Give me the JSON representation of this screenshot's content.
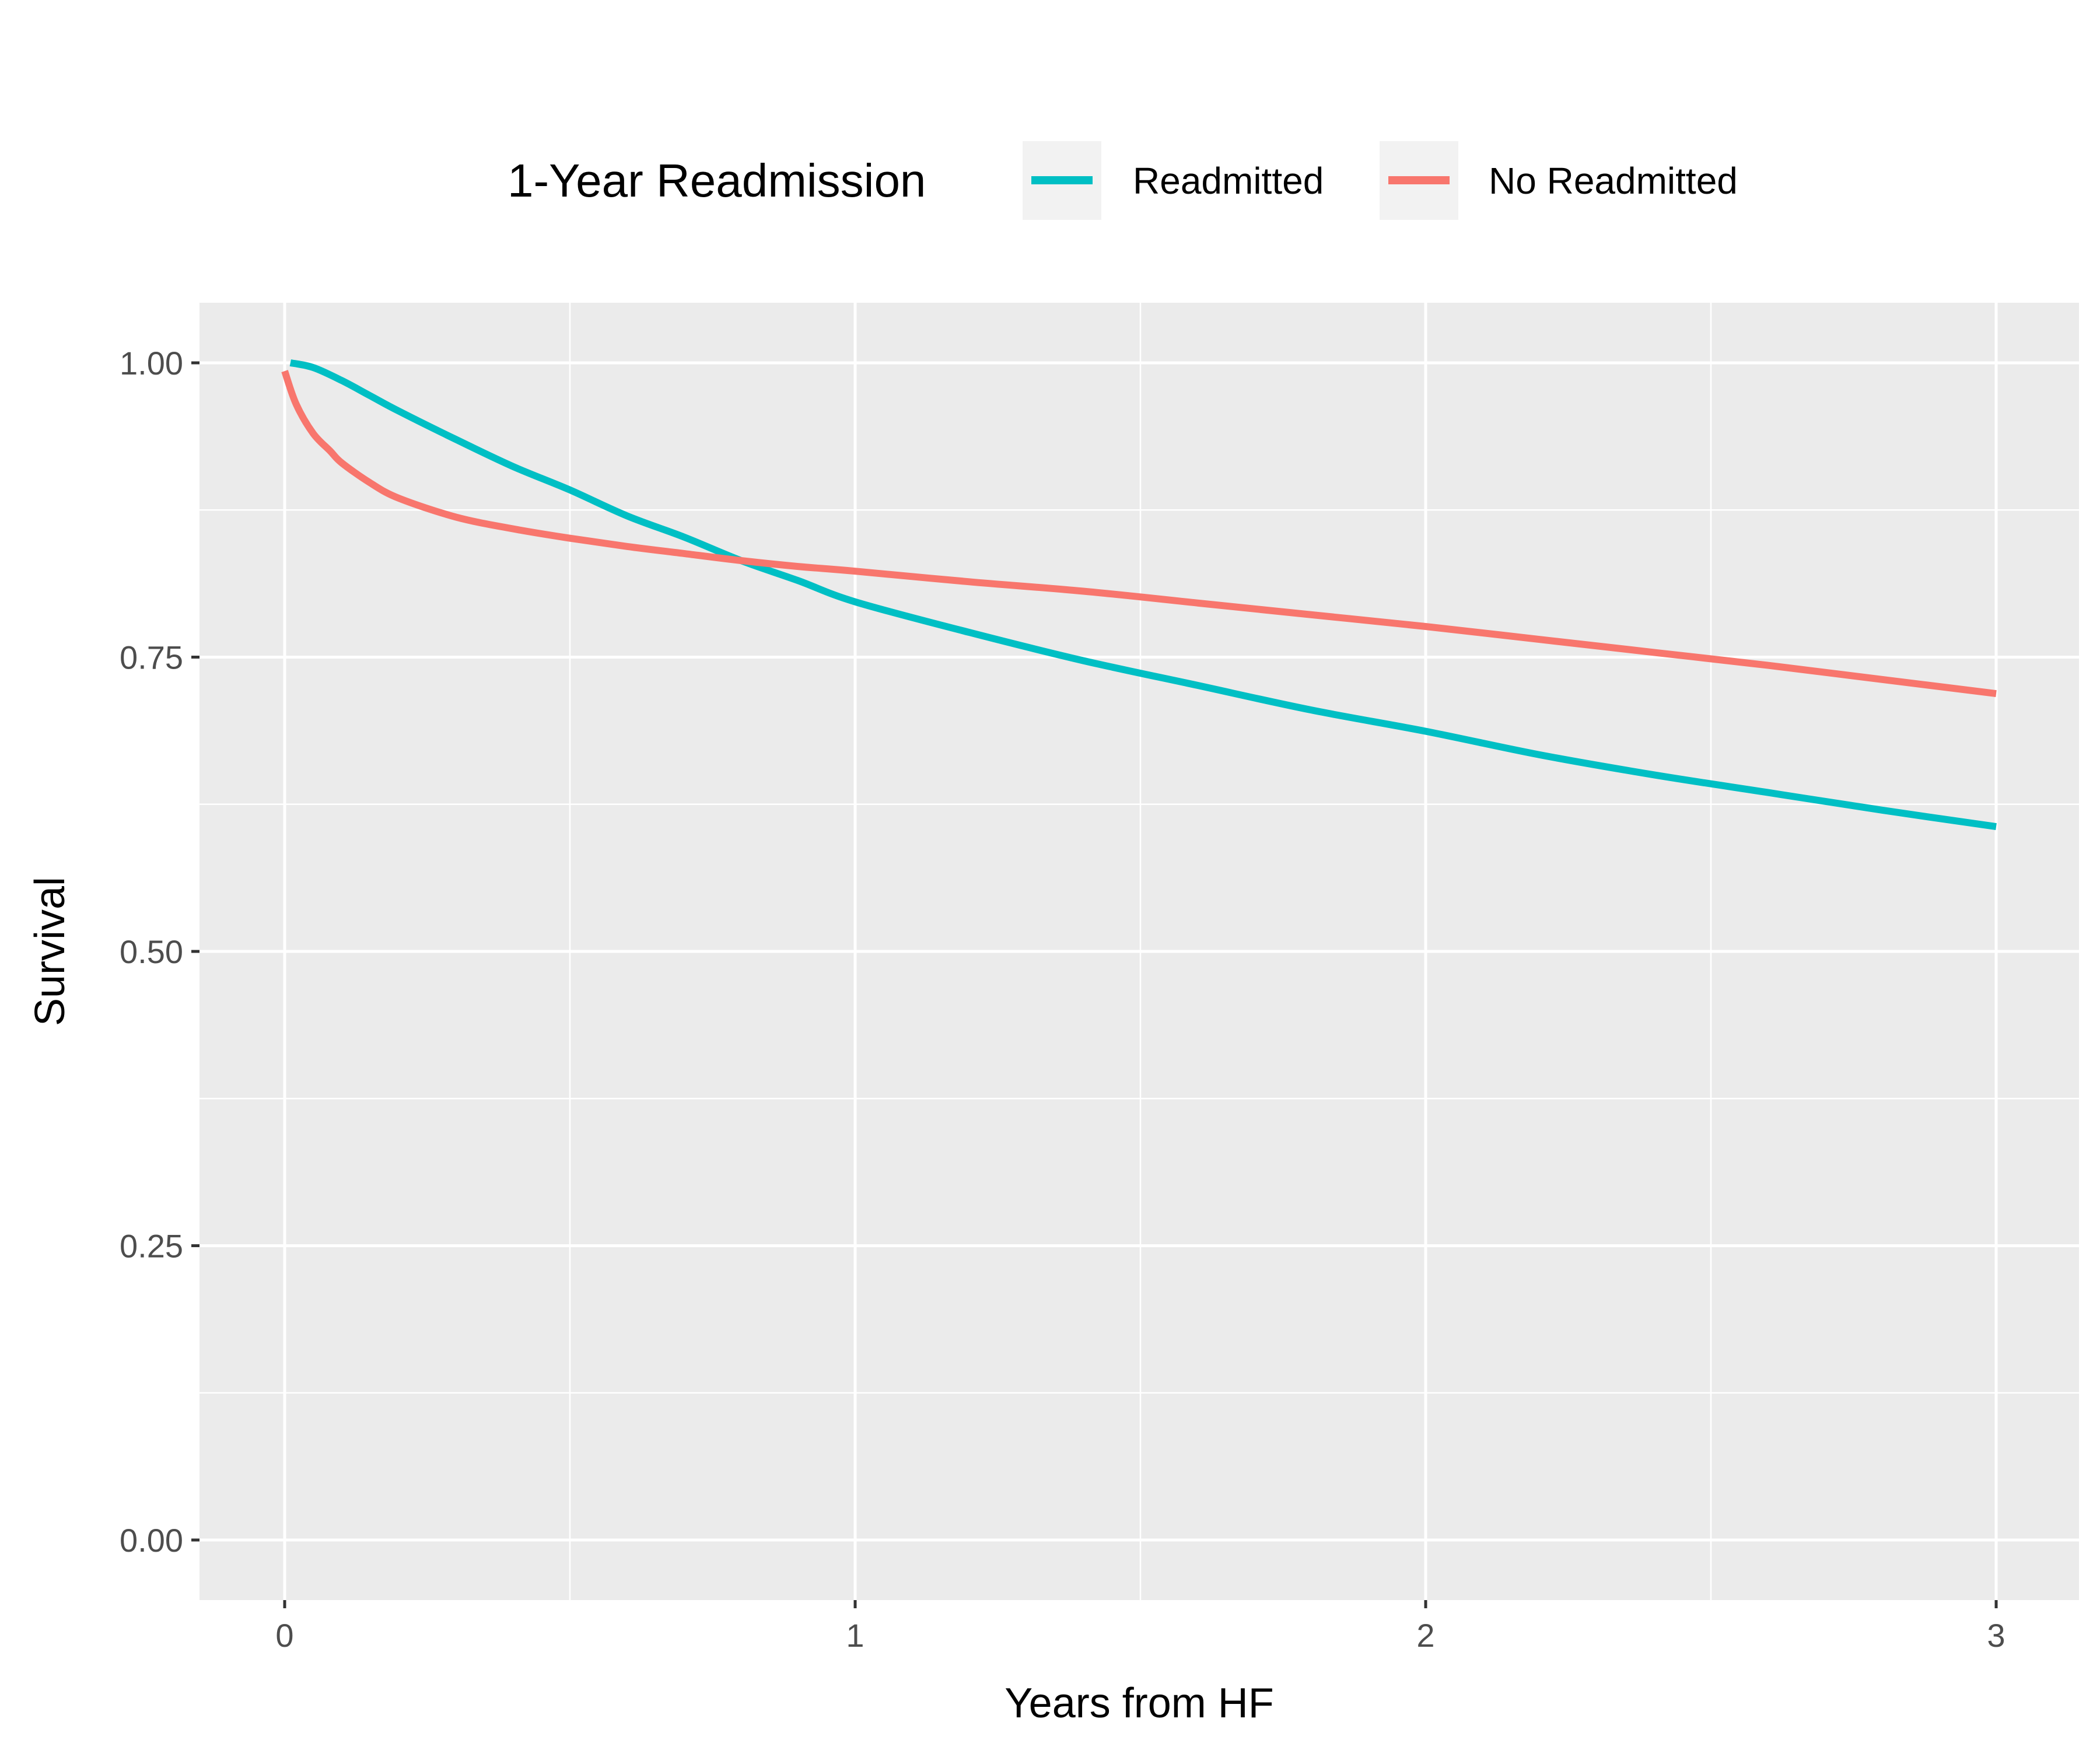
{
  "chart_data": {
    "type": "line",
    "title": "",
    "xlabel": "Years from HF",
    "ylabel": "Survival",
    "xlim": [
      0,
      3
    ],
    "ylim": [
      0,
      1
    ],
    "xticks": [
      "0",
      "1",
      "2",
      "3"
    ],
    "yticks": [
      "0.00",
      "0.25",
      "0.50",
      "0.75",
      "1.00"
    ],
    "grid": true,
    "legend": {
      "title": "1-Year Readmission",
      "position": "top"
    },
    "series": [
      {
        "name": "Readmitted",
        "color": "#00BFC4",
        "x": [
          0.01,
          0.05,
          0.1,
          0.15,
          0.2,
          0.3,
          0.4,
          0.5,
          0.6,
          0.7,
          0.8,
          0.9,
          1.0,
          1.2,
          1.4,
          1.6,
          1.8,
          2.0,
          2.2,
          2.4,
          2.6,
          2.8,
          3.0
        ],
        "y": [
          1.0,
          0.996,
          0.985,
          0.972,
          0.959,
          0.935,
          0.912,
          0.892,
          0.87,
          0.852,
          0.832,
          0.815,
          0.797,
          0.771,
          0.747,
          0.726,
          0.705,
          0.687,
          0.667,
          0.65,
          0.635,
          0.62,
          0.606
        ]
      },
      {
        "name": "No Readmitted",
        "color": "#F8766D",
        "x": [
          0.0,
          0.02,
          0.05,
          0.08,
          0.1,
          0.15,
          0.2,
          0.3,
          0.4,
          0.5,
          0.6,
          0.7,
          0.8,
          0.9,
          1.0,
          1.2,
          1.4,
          1.6,
          1.8,
          2.0,
          2.2,
          2.4,
          2.6,
          2.8,
          3.0
        ],
        "y": [
          0.993,
          0.965,
          0.94,
          0.925,
          0.915,
          0.898,
          0.885,
          0.869,
          0.859,
          0.851,
          0.844,
          0.838,
          0.832,
          0.827,
          0.823,
          0.814,
          0.806,
          0.796,
          0.786,
          0.776,
          0.765,
          0.754,
          0.743,
          0.731,
          0.719
        ]
      }
    ]
  }
}
